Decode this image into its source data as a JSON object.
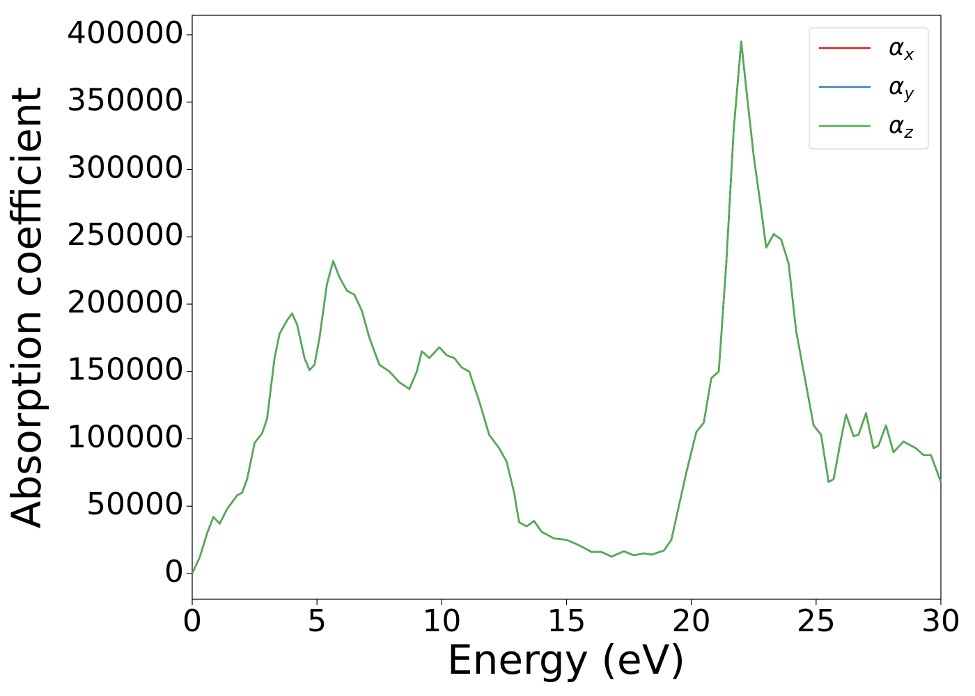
{
  "chart_data": {
    "type": "line",
    "xlabel": "Energy (eV)",
    "ylabel": "Absorption coefficient",
    "xlim": [
      0,
      30
    ],
    "ylim": [
      -19130,
      414470
    ],
    "xticks": [
      0,
      5,
      10,
      15,
      20,
      25,
      30
    ],
    "yticks": [
      0,
      50000,
      100000,
      150000,
      200000,
      250000,
      300000,
      350000,
      400000
    ],
    "legend": "upper right",
    "x": [
      0,
      0.3,
      0.6,
      0.85,
      1.1,
      1.4,
      1.8,
      2.0,
      2.2,
      2.5,
      2.8,
      3.0,
      3.3,
      3.5,
      3.8,
      4.0,
      4.2,
      4.5,
      4.7,
      4.9,
      5.1,
      5.4,
      5.65,
      5.9,
      6.2,
      6.5,
      6.8,
      7.1,
      7.5,
      7.9,
      8.3,
      8.7,
      9.0,
      9.2,
      9.5,
      9.9,
      10.2,
      10.5,
      10.8,
      11.1,
      11.5,
      11.9,
      12.3,
      12.6,
      12.9,
      13.1,
      13.4,
      13.7,
      14.0,
      14.5,
      15.0,
      15.5,
      16.0,
      16.4,
      16.8,
      17.3,
      17.7,
      18.1,
      18.4,
      18.9,
      19.2,
      19.5,
      19.8,
      20.2,
      20.5,
      20.8,
      21.1,
      21.4,
      21.7,
      22.0,
      22.2,
      22.5,
      22.8,
      23.0,
      23.3,
      23.6,
      23.9,
      24.2,
      24.6,
      24.9,
      25.2,
      25.5,
      25.7,
      26.0,
      26.2,
      26.5,
      26.7,
      27.0,
      27.3,
      27.5,
      27.8,
      28.1,
      28.5,
      29.0,
      29.3,
      29.6,
      30.0
    ],
    "series": [
      {
        "name": "αx",
        "color": "#e41a1c",
        "values": [
          0,
          12000,
          30000,
          42000,
          37000,
          48000,
          58000,
          60000,
          70000,
          97000,
          104000,
          115000,
          160000,
          178000,
          188000,
          193000,
          185000,
          160000,
          151000,
          155000,
          175000,
          215000,
          232000,
          220000,
          210000,
          207000,
          195000,
          175000,
          155000,
          150000,
          142000,
          137000,
          150000,
          165000,
          160000,
          168000,
          162000,
          160000,
          153000,
          150000,
          128000,
          103000,
          93000,
          83000,
          60000,
          38000,
          35000,
          39000,
          31000,
          26000,
          25000,
          21000,
          16000,
          16000,
          12500,
          16500,
          13500,
          15000,
          14000,
          17000,
          25000,
          50000,
          75000,
          105000,
          112000,
          145000,
          150000,
          230000,
          330000,
          395000,
          360000,
          310000,
          270000,
          242000,
          252000,
          248000,
          230000,
          180000,
          140000,
          110000,
          103000,
          68000,
          70000,
          100000,
          118000,
          102000,
          103000,
          119000,
          93000,
          95000,
          110000,
          90000,
          98000,
          93000,
          88000,
          88000,
          68000
        ]
      },
      {
        "name": "αy",
        "color": "#377eb8",
        "values": [
          0,
          12000,
          30000,
          42000,
          37000,
          48000,
          58000,
          60000,
          70000,
          97000,
          104000,
          115000,
          160000,
          178000,
          188000,
          193000,
          185000,
          160000,
          151000,
          155000,
          175000,
          215000,
          232000,
          220000,
          210000,
          207000,
          195000,
          175000,
          155000,
          150000,
          142000,
          137000,
          150000,
          165000,
          160000,
          168000,
          162000,
          160000,
          153000,
          150000,
          128000,
          103000,
          93000,
          83000,
          60000,
          38000,
          35000,
          39000,
          31000,
          26000,
          25000,
          21000,
          16000,
          16000,
          12500,
          16500,
          13500,
          15000,
          14000,
          17000,
          25000,
          50000,
          75000,
          105000,
          112000,
          145000,
          150000,
          230000,
          330000,
          395000,
          360000,
          310000,
          270000,
          242000,
          252000,
          248000,
          230000,
          180000,
          140000,
          110000,
          103000,
          68000,
          70000,
          100000,
          118000,
          102000,
          103000,
          119000,
          93000,
          95000,
          110000,
          90000,
          98000,
          93000,
          88000,
          88000,
          68000
        ]
      },
      {
        "name": "αz",
        "color": "#4daf4a",
        "values": [
          0,
          12000,
          30000,
          42000,
          37000,
          48000,
          58000,
          60000,
          70000,
          97000,
          104000,
          115000,
          160000,
          178000,
          188000,
          193000,
          185000,
          160000,
          151000,
          155000,
          175000,
          215000,
          232000,
          220000,
          210000,
          207000,
          195000,
          175000,
          155000,
          150000,
          142000,
          137000,
          150000,
          165000,
          160000,
          168000,
          162000,
          160000,
          153000,
          150000,
          128000,
          103000,
          93000,
          83000,
          60000,
          38000,
          35000,
          39000,
          31000,
          26000,
          25000,
          21000,
          16000,
          16000,
          12500,
          16500,
          13500,
          15000,
          14000,
          17000,
          25000,
          50000,
          75000,
          105000,
          112000,
          145000,
          150000,
          230000,
          330000,
          395000,
          360000,
          310000,
          270000,
          242000,
          252000,
          248000,
          230000,
          180000,
          140000,
          110000,
          103000,
          68000,
          70000,
          100000,
          118000,
          102000,
          103000,
          119000,
          93000,
          95000,
          110000,
          90000,
          98000,
          93000,
          88000,
          88000,
          68000
        ]
      }
    ]
  }
}
